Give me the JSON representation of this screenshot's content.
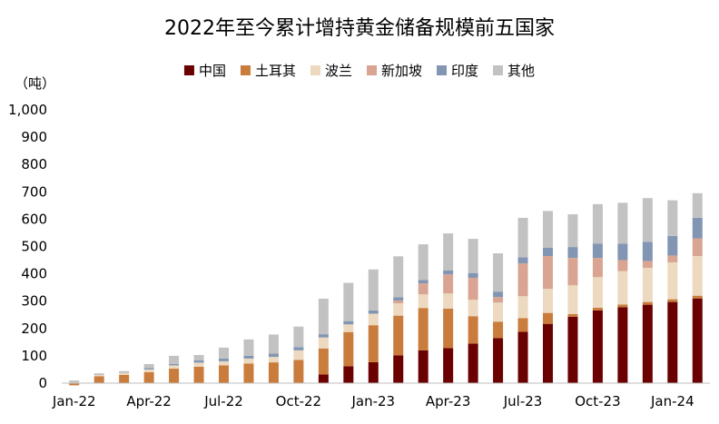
{
  "chart_data": {
    "type": "bar",
    "stacked": true,
    "title": "2022年至今累计增持黄金储备规模前五国家",
    "ylabel": "（吨）",
    "xlabel": "",
    "ylim": [
      0,
      1000
    ],
    "yticks": [
      "0",
      "100",
      "200",
      "300",
      "400",
      "500",
      "600",
      "700",
      "800",
      "900",
      "1,000"
    ],
    "grid": false,
    "legend_position": "top",
    "categories": [
      "2022-01",
      "2022-02",
      "2022-03",
      "2022-04",
      "2022-05",
      "2022-06",
      "2022-07",
      "2022-08",
      "2022-09",
      "2022-10",
      "2022-11",
      "2022-12",
      "2023-01",
      "2023-02",
      "2023-03",
      "2023-04",
      "2023-05",
      "2023-06",
      "2023-07",
      "2023-08",
      "2023-09",
      "2023-10",
      "2023-11",
      "2023-12",
      "2024-01",
      "2024-02"
    ],
    "xtick_labels": [
      "Jan-22",
      "",
      "",
      "Apr-22",
      "",
      "",
      "Jul-22",
      "",
      "",
      "Oct-22",
      "",
      "",
      "Jan-23",
      "",
      "",
      "Apr-23",
      "",
      "",
      "Jul-23",
      "",
      "",
      "Oct-23",
      "",
      "",
      "Jan-24",
      ""
    ],
    "series": [
      {
        "name": "中国",
        "color": "#6b0000",
        "values": [
          0,
          0,
          0,
          0,
          0,
          0,
          0,
          0,
          0,
          0,
          32,
          62,
          77,
          102,
          120,
          128,
          145,
          165,
          188,
          217,
          243,
          266,
          278,
          287,
          297,
          310
        ]
      },
      {
        "name": "土耳其",
        "color": "#c97c3c",
        "values": [
          -8,
          25,
          30,
          40,
          53,
          60,
          65,
          72,
          76,
          85,
          95,
          125,
          135,
          145,
          155,
          145,
          100,
          60,
          50,
          40,
          10,
          10,
          10,
          10,
          10,
          10
        ]
      },
      {
        "name": "波兰",
        "color": "#ecd9bf",
        "values": [
          2,
          5,
          7,
          10,
          12,
          15,
          15,
          18,
          20,
          35,
          40,
          28,
          42,
          45,
          50,
          55,
          60,
          70,
          80,
          88,
          105,
          112,
          122,
          125,
          135,
          145
        ]
      },
      {
        "name": "新加坡",
        "color": "#d9a592",
        "values": [
          0,
          0,
          0,
          0,
          0,
          0,
          0,
          0,
          0,
          0,
          0,
          0,
          0,
          10,
          40,
          70,
          80,
          20,
          120,
          120,
          100,
          70,
          40,
          25,
          25,
          65
        ]
      },
      {
        "name": "印度",
        "color": "#8296b4",
        "values": [
          0,
          0,
          0,
          5,
          5,
          8,
          10,
          10,
          12,
          12,
          12,
          12,
          12,
          12,
          13,
          15,
          18,
          20,
          22,
          30,
          40,
          52,
          60,
          70,
          72,
          75
        ]
      },
      {
        "name": "其他",
        "color": "#c2c2c2",
        "values": [
          8,
          6,
          7,
          15,
          30,
          20,
          40,
          60,
          70,
          75,
          130,
          140,
          150,
          150,
          130,
          135,
          125,
          140,
          145,
          135,
          120,
          145,
          150,
          160,
          130,
          90
        ]
      }
    ]
  }
}
